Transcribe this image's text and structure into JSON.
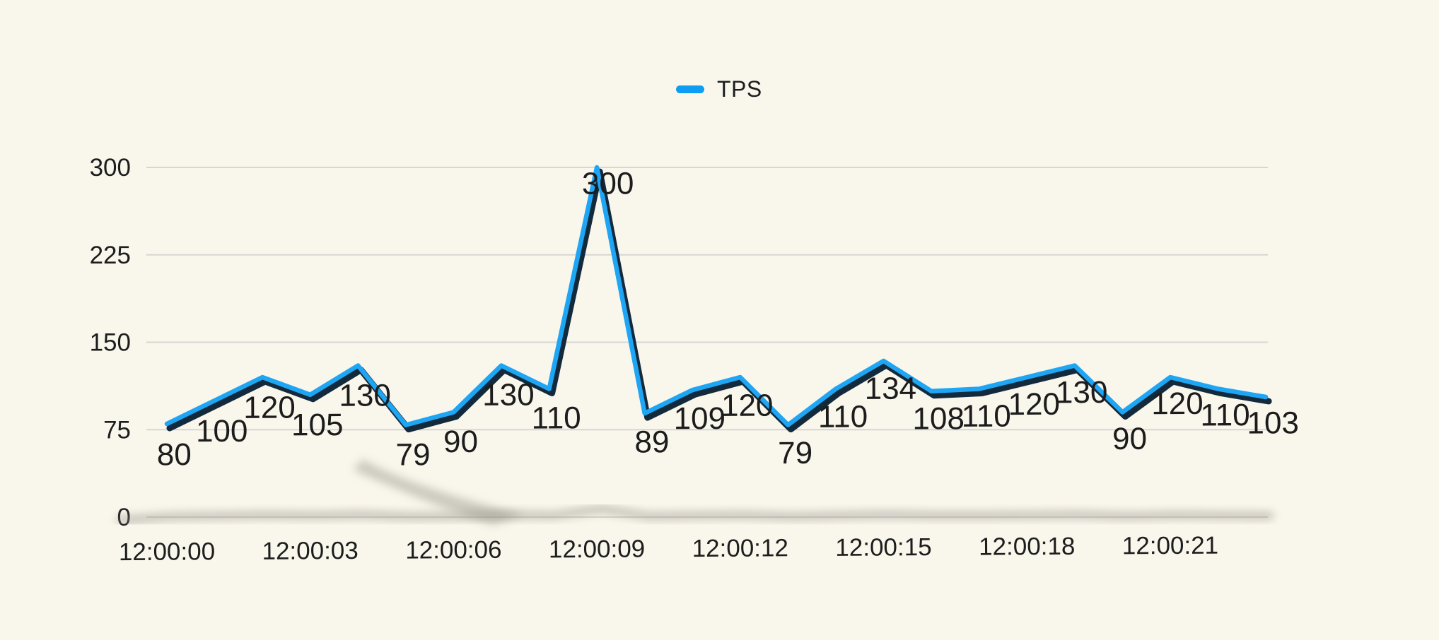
{
  "chart_data": {
    "type": "line",
    "title": "",
    "legend": {
      "label": "TPS",
      "position": "top-center",
      "marker_color": "#0d9df3"
    },
    "series": [
      {
        "name": "TPS",
        "color": "#1ea6f4",
        "depth_color": "#132a3c",
        "values": [
          80,
          100,
          120,
          105,
          130,
          79,
          90,
          130,
          110,
          300,
          89,
          109,
          120,
          79,
          110,
          134,
          108,
          110,
          120,
          130,
          90,
          120,
          110,
          103
        ]
      }
    ],
    "point_labels": [
      "80",
      "100",
      "120",
      "105",
      "130",
      "79",
      "90",
      "130",
      "110",
      "300",
      "89",
      "109",
      "120",
      "79",
      "110",
      "134",
      "108",
      "110",
      "120",
      "130",
      "90",
      "120",
      "110",
      "103"
    ],
    "x_tick_labels": [
      "12:00:00",
      "12:00:03",
      "12:00:06",
      "12:00:09",
      "12:00:12",
      "12:00:15",
      "12:00:18",
      "12:00:21"
    ],
    "x_tick_every": 3,
    "y_ticks": [
      0,
      75,
      150,
      225,
      300
    ],
    "ylim": [
      0,
      300
    ],
    "grid": true,
    "legend_visible": true,
    "point_labels_visible": true,
    "background_color": "#f9f6ec",
    "gridline_color": "#d7d6d1",
    "text_color": "#1d1d1d",
    "shadow_color": "#8f8d83",
    "label_offsets": {
      "default": [
        10,
        55
      ],
      "9": [
        17,
        37
      ]
    }
  }
}
